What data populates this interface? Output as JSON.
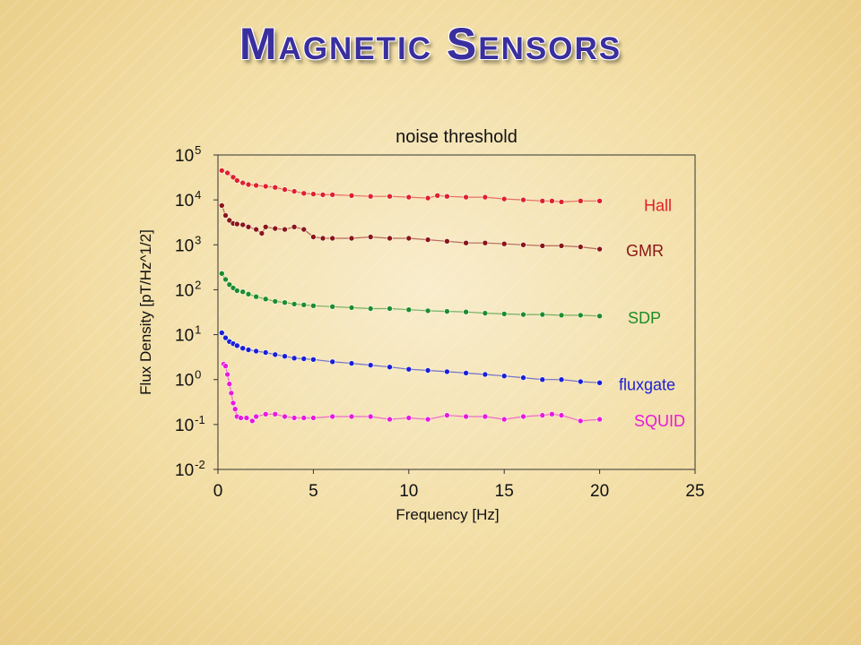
{
  "slide": {
    "title": "Magnetic Sensors"
  },
  "chart_data": {
    "type": "scatter",
    "title": "noise threshold",
    "xlabel": "Frequency [Hz]",
    "ylabel": "Flux Density [pT/Hz^1/2]",
    "xlim": [
      0,
      25
    ],
    "ylim": [
      0.01,
      100000
    ],
    "yscale": "log",
    "grid": false,
    "x_ticks": [
      0,
      5,
      10,
      15,
      20,
      25
    ],
    "y_ticks": [
      {
        "value": 0.01,
        "base": "10",
        "exp": "-2"
      },
      {
        "value": 0.1,
        "base": "10",
        "exp": "-1"
      },
      {
        "value": 1,
        "base": "10",
        "exp": "0"
      },
      {
        "value": 10,
        "base": "10",
        "exp": "1"
      },
      {
        "value": 100,
        "base": "10",
        "exp": "2"
      },
      {
        "value": 1000,
        "base": "10",
        "exp": "3"
      },
      {
        "value": 10000,
        "base": "10",
        "exp": "4"
      },
      {
        "value": 100000,
        "base": "10",
        "exp": "5"
      }
    ],
    "series": [
      {
        "name": "Hall",
        "color": "#e0202a",
        "label_pos": "right",
        "x": [
          0.2,
          0.5,
          0.8,
          1.0,
          1.3,
          1.6,
          2,
          2.5,
          3,
          3.5,
          4,
          4.5,
          5,
          5.5,
          6,
          7,
          8,
          9,
          10,
          11,
          11.5,
          12,
          13,
          14,
          15,
          16,
          17,
          17.5,
          18,
          19,
          20
        ],
        "y": [
          45000,
          40000,
          32000,
          27000,
          24000,
          22000,
          21000,
          20000,
          19000,
          17000,
          15500,
          14000,
          13500,
          13000,
          13000,
          12500,
          12000,
          12000,
          11500,
          11000,
          12500,
          12000,
          11500,
          11500,
          10500,
          10000,
          9500,
          9500,
          9000,
          9500,
          9500
        ]
      },
      {
        "name": "GMR",
        "color": "#8b1515",
        "label_pos": "right",
        "x": [
          0.2,
          0.4,
          0.6,
          0.8,
          1.0,
          1.3,
          1.6,
          2,
          2.3,
          2.5,
          3,
          3.5,
          4,
          4.5,
          5,
          5.5,
          6,
          7,
          8,
          9,
          10,
          11,
          12,
          13,
          14,
          15,
          16,
          17,
          18,
          19,
          20
        ],
        "y": [
          7500,
          4500,
          3500,
          3000,
          2900,
          2800,
          2500,
          2200,
          1800,
          2500,
          2300,
          2200,
          2500,
          2200,
          1500,
          1400,
          1400,
          1400,
          1500,
          1400,
          1400,
          1300,
          1200,
          1100,
          1100,
          1050,
          1000,
          950,
          950,
          900,
          800
        ]
      },
      {
        "name": "SDP",
        "color": "#1e8c2a",
        "label_pos": "right",
        "x": [
          0.2,
          0.4,
          0.6,
          0.8,
          1.0,
          1.3,
          1.6,
          2,
          2.5,
          3,
          3.5,
          4,
          4.5,
          5,
          6,
          7,
          8,
          9,
          10,
          11,
          12,
          13,
          14,
          15,
          16,
          17,
          18,
          19,
          20
        ],
        "y": [
          230,
          170,
          130,
          110,
          95,
          90,
          80,
          70,
          62,
          55,
          52,
          48,
          46,
          44,
          42,
          40,
          38,
          38,
          36,
          34,
          33,
          32,
          30,
          29,
          28,
          28,
          27,
          27,
          26
        ]
      },
      {
        "name": "fluxgate",
        "color": "#1a1fd6",
        "label_pos": "right",
        "x": [
          0.2,
          0.4,
          0.6,
          0.8,
          1.0,
          1.3,
          1.6,
          2,
          2.5,
          3,
          3.5,
          4,
          4.5,
          5,
          6,
          7,
          8,
          9,
          10,
          11,
          12,
          13,
          14,
          15,
          16,
          17,
          18,
          19,
          20
        ],
        "y": [
          11,
          8.5,
          7,
          6.3,
          5.7,
          5,
          4.6,
          4.3,
          4,
          3.6,
          3.3,
          3,
          2.9,
          2.8,
          2.5,
          2.3,
          2.1,
          1.9,
          1.7,
          1.6,
          1.5,
          1.4,
          1.3,
          1.2,
          1.1,
          1.0,
          1.0,
          0.9,
          0.85
        ]
      },
      {
        "name": "SQUID",
        "color": "#e81ad8",
        "label_pos": "right",
        "x": [
          0.3,
          0.4,
          0.5,
          0.6,
          0.7,
          0.8,
          0.9,
          1.0,
          1.2,
          1.5,
          1.8,
          2,
          2.5,
          3,
          3.5,
          4,
          4.5,
          5,
          6,
          7,
          8,
          9,
          10,
          11,
          12,
          13,
          14,
          15,
          16,
          17,
          17.5,
          18,
          19,
          20
        ],
        "y": [
          2.2,
          2.0,
          1.3,
          0.8,
          0.5,
          0.3,
          0.22,
          0.15,
          0.14,
          0.14,
          0.12,
          0.15,
          0.17,
          0.17,
          0.15,
          0.14,
          0.14,
          0.14,
          0.15,
          0.15,
          0.15,
          0.13,
          0.14,
          0.13,
          0.16,
          0.15,
          0.15,
          0.13,
          0.15,
          0.16,
          0.17,
          0.16,
          0.12,
          0.13
        ]
      }
    ]
  }
}
